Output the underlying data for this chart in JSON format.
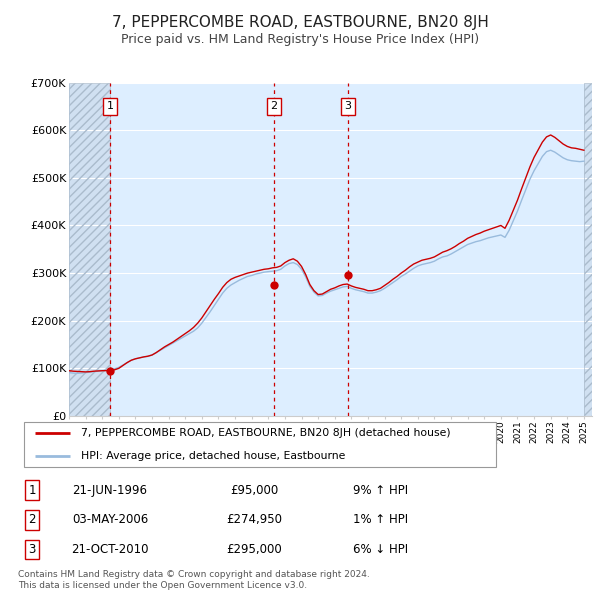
{
  "title": "7, PEPPERCOMBE ROAD, EASTBOURNE, BN20 8JH",
  "subtitle": "Price paid vs. HM Land Registry's House Price Index (HPI)",
  "title_fontsize": 11,
  "subtitle_fontsize": 9,
  "ylim": [
    0,
    700000
  ],
  "yticks": [
    0,
    100000,
    200000,
    300000,
    400000,
    500000,
    600000,
    700000
  ],
  "ytick_labels": [
    "£0",
    "£100K",
    "£200K",
    "£300K",
    "£400K",
    "£500K",
    "£600K",
    "£700K"
  ],
  "xlim_start": 1994.0,
  "xlim_end": 2025.5,
  "background_color": "#ffffff",
  "plot_bg_color": "#ddeeff",
  "grid_color": "#ffffff",
  "hpi_line_color": "#99bbdd",
  "price_line_color": "#cc0000",
  "sale_marker_color": "#cc0000",
  "sale_vline_color": "#cc0000",
  "hatch_color": "#bbccdd",
  "legend_hpi_color": "#99bbdd",
  "transactions": [
    {
      "num": 1,
      "date_str": "21-JUN-1996",
      "year": 1996.47,
      "price": 95000,
      "label": "9% ↑ HPI"
    },
    {
      "num": 2,
      "date_str": "03-MAY-2006",
      "year": 2006.34,
      "price": 274950,
      "label": "1% ↑ HPI"
    },
    {
      "num": 3,
      "date_str": "21-OCT-2010",
      "year": 2010.8,
      "price": 295000,
      "label": "6% ↓ HPI"
    }
  ],
  "legend_line1": "7, PEPPERCOMBE ROAD, EASTBOURNE, BN20 8JH (detached house)",
  "legend_line2": "HPI: Average price, detached house, Eastbourne",
  "footnote1": "Contains HM Land Registry data © Crown copyright and database right 2024.",
  "footnote2": "This data is licensed under the Open Government Licence v3.0.",
  "hpi_data_years": [
    1994.0,
    1994.25,
    1994.5,
    1994.75,
    1995.0,
    1995.25,
    1995.5,
    1995.75,
    1996.0,
    1996.25,
    1996.5,
    1996.75,
    1997.0,
    1997.25,
    1997.5,
    1997.75,
    1998.0,
    1998.25,
    1998.5,
    1998.75,
    1999.0,
    1999.25,
    1999.5,
    1999.75,
    2000.0,
    2000.25,
    2000.5,
    2000.75,
    2001.0,
    2001.25,
    2001.5,
    2001.75,
    2002.0,
    2002.25,
    2002.5,
    2002.75,
    2003.0,
    2003.25,
    2003.5,
    2003.75,
    2004.0,
    2004.25,
    2004.5,
    2004.75,
    2005.0,
    2005.25,
    2005.5,
    2005.75,
    2006.0,
    2006.25,
    2006.5,
    2006.75,
    2007.0,
    2007.25,
    2007.5,
    2007.75,
    2008.0,
    2008.25,
    2008.5,
    2008.75,
    2009.0,
    2009.25,
    2009.5,
    2009.75,
    2010.0,
    2010.25,
    2010.5,
    2010.75,
    2011.0,
    2011.25,
    2011.5,
    2011.75,
    2012.0,
    2012.25,
    2012.5,
    2012.75,
    2013.0,
    2013.25,
    2013.5,
    2013.75,
    2014.0,
    2014.25,
    2014.5,
    2014.75,
    2015.0,
    2015.25,
    2015.5,
    2015.75,
    2016.0,
    2016.25,
    2016.5,
    2016.75,
    2017.0,
    2017.25,
    2017.5,
    2017.75,
    2018.0,
    2018.25,
    2018.5,
    2018.75,
    2019.0,
    2019.25,
    2019.5,
    2019.75,
    2020.0,
    2020.25,
    2020.5,
    2020.75,
    2021.0,
    2021.25,
    2021.5,
    2021.75,
    2022.0,
    2022.25,
    2022.5,
    2022.75,
    2023.0,
    2023.25,
    2023.5,
    2023.75,
    2024.0,
    2024.25,
    2024.5,
    2024.75,
    2025.0
  ],
  "hpi_data_values": [
    91000,
    90000,
    89500,
    90000,
    91000,
    92000,
    93000,
    94000,
    95000,
    96000,
    97500,
    99000,
    102000,
    107000,
    112000,
    117000,
    120000,
    122000,
    124000,
    125000,
    128000,
    133000,
    138000,
    143000,
    148000,
    153000,
    158000,
    163000,
    168000,
    173000,
    178000,
    185000,
    195000,
    207000,
    219000,
    232000,
    245000,
    258000,
    268000,
    275000,
    280000,
    285000,
    289000,
    293000,
    295000,
    298000,
    300000,
    302000,
    303000,
    304000,
    305000,
    308000,
    315000,
    320000,
    322000,
    318000,
    308000,
    292000,
    272000,
    260000,
    252000,
    253000,
    258000,
    262000,
    265000,
    268000,
    271000,
    272000,
    268000,
    265000,
    263000,
    261000,
    258000,
    258000,
    260000,
    263000,
    268000,
    274000,
    280000,
    286000,
    293000,
    298000,
    304000,
    310000,
    315000,
    318000,
    320000,
    322000,
    325000,
    330000,
    334000,
    336000,
    340000,
    345000,
    350000,
    355000,
    360000,
    363000,
    366000,
    368000,
    371000,
    374000,
    376000,
    378000,
    380000,
    375000,
    390000,
    410000,
    430000,
    453000,
    475000,
    497000,
    515000,
    530000,
    545000,
    555000,
    558000,
    554000,
    548000,
    542000,
    538000,
    536000,
    535000,
    534000,
    535000
  ],
  "price_line_years": [
    1994.0,
    1994.25,
    1994.5,
    1994.75,
    1995.0,
    1995.25,
    1995.5,
    1995.75,
    1996.0,
    1996.25,
    1996.5,
    1996.75,
    1997.0,
    1997.25,
    1997.5,
    1997.75,
    1998.0,
    1998.25,
    1998.5,
    1998.75,
    1999.0,
    1999.25,
    1999.5,
    1999.75,
    2000.0,
    2000.25,
    2000.5,
    2000.75,
    2001.0,
    2001.25,
    2001.5,
    2001.75,
    2002.0,
    2002.25,
    2002.5,
    2002.75,
    2003.0,
    2003.25,
    2003.5,
    2003.75,
    2004.0,
    2004.25,
    2004.5,
    2004.75,
    2005.0,
    2005.25,
    2005.5,
    2005.75,
    2006.0,
    2006.25,
    2006.5,
    2006.75,
    2007.0,
    2007.25,
    2007.5,
    2007.75,
    2008.0,
    2008.25,
    2008.5,
    2008.75,
    2009.0,
    2009.25,
    2009.5,
    2009.75,
    2010.0,
    2010.25,
    2010.5,
    2010.75,
    2011.0,
    2011.25,
    2011.5,
    2011.75,
    2012.0,
    2012.25,
    2012.5,
    2012.75,
    2013.0,
    2013.25,
    2013.5,
    2013.75,
    2014.0,
    2014.25,
    2014.5,
    2014.75,
    2015.0,
    2015.25,
    2015.5,
    2015.75,
    2016.0,
    2016.25,
    2016.5,
    2016.75,
    2017.0,
    2017.25,
    2017.5,
    2017.75,
    2018.0,
    2018.25,
    2018.5,
    2018.75,
    2019.0,
    2019.25,
    2019.5,
    2019.75,
    2020.0,
    2020.25,
    2020.5,
    2020.75,
    2021.0,
    2021.25,
    2021.5,
    2021.75,
    2022.0,
    2022.25,
    2022.5,
    2022.75,
    2023.0,
    2023.25,
    2023.5,
    2023.75,
    2024.0,
    2024.25,
    2024.5,
    2024.75,
    2025.0
  ],
  "price_line_values": [
    95000,
    94000,
    93500,
    93000,
    92500,
    93000,
    94000,
    94500,
    95000,
    95200,
    96000,
    97000,
    100000,
    106000,
    112000,
    117000,
    120000,
    122000,
    124000,
    125500,
    128000,
    133000,
    139000,
    145000,
    150000,
    155000,
    161000,
    167000,
    173000,
    179000,
    186000,
    195000,
    206000,
    219000,
    232000,
    245000,
    257000,
    270000,
    280000,
    287000,
    291000,
    294000,
    297000,
    300000,
    302000,
    304000,
    306000,
    308000,
    309000,
    311000,
    312000,
    315000,
    322000,
    327000,
    330000,
    325000,
    314000,
    297000,
    276000,
    263000,
    255000,
    256000,
    261000,
    266000,
    269000,
    273000,
    276000,
    277000,
    273000,
    270000,
    268000,
    266000,
    263000,
    263000,
    265000,
    268000,
    274000,
    280000,
    287000,
    293000,
    300000,
    306000,
    313000,
    319000,
    323000,
    327000,
    329000,
    331000,
    334000,
    339000,
    344000,
    347000,
    351000,
    356000,
    362000,
    367000,
    373000,
    377000,
    381000,
    384000,
    388000,
    391000,
    394000,
    397000,
    400000,
    394000,
    411000,
    432000,
    453000,
    477000,
    500000,
    523000,
    543000,
    559000,
    575000,
    586000,
    590000,
    585000,
    578000,
    571000,
    566000,
    563000,
    562000,
    560000,
    558000
  ]
}
